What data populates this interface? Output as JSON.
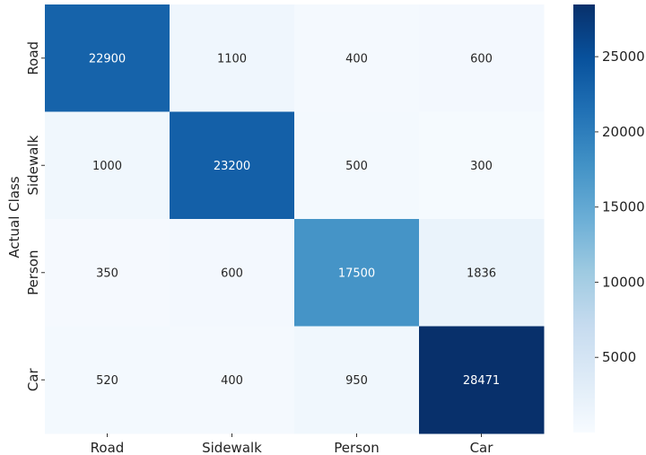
{
  "chart_data": {
    "type": "heatmap",
    "title": "",
    "ylabel": "Actual Class",
    "xlabel": "",
    "x_categories": [
      "Road",
      "Sidewalk",
      "Person",
      "Car"
    ],
    "y_categories": [
      "Road",
      "Sidewalk",
      "Person",
      "Car"
    ],
    "values": [
      [
        22900,
        1100,
        400,
        600
      ],
      [
        1000,
        23200,
        500,
        300
      ],
      [
        350,
        600,
        17500,
        1836
      ],
      [
        520,
        400,
        950,
        28471
      ]
    ],
    "colormap": "Blues",
    "colorbar": {
      "range": [
        0,
        28471
      ],
      "ticks": [
        5000,
        10000,
        15000,
        20000,
        25000
      ]
    },
    "grid": false
  }
}
